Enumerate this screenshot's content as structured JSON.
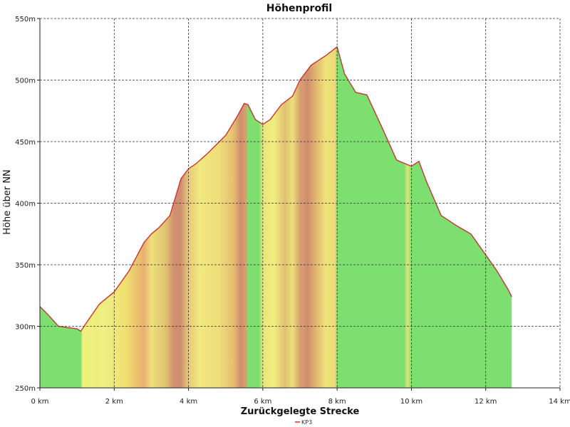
{
  "chart_data": {
    "type": "area",
    "title": "Höhenprofil",
    "xlabel": "Zurückgelegte Strecke",
    "ylabel": "Höhe über NN",
    "xlim": [
      0,
      14
    ],
    "ylim": [
      250,
      550
    ],
    "x_ticks": [
      0,
      2,
      4,
      6,
      8,
      10,
      12,
      14
    ],
    "x_tick_labels": [
      "0 km",
      "2 km",
      "4 km",
      "6 km",
      "8 km",
      "10 km",
      "12 km",
      "14 km"
    ],
    "y_ticks": [
      250,
      300,
      350,
      400,
      450,
      500,
      550
    ],
    "y_tick_labels": [
      "250m",
      "300m",
      "350m",
      "400m",
      "450m",
      "500m",
      "550m"
    ],
    "grid": true,
    "legend_position": "bottom-center",
    "series": [
      {
        "name": "KP3",
        "color": "#cc3333",
        "x": [
          0,
          0.2,
          0.5,
          1.0,
          1.1,
          1.3,
          1.6,
          2.0,
          2.4,
          2.8,
          3.0,
          3.2,
          3.5,
          3.8,
          4.0,
          4.2,
          4.5,
          5.0,
          5.3,
          5.5,
          5.6,
          5.8,
          6.0,
          6.2,
          6.5,
          6.8,
          7.0,
          7.3,
          7.7,
          8.0,
          8.2,
          8.5,
          8.8,
          9.2,
          9.6,
          10.0,
          10.2,
          10.4,
          10.8,
          11.2,
          11.6,
          12.0,
          12.3,
          12.6,
          12.7
        ],
        "y": [
          316,
          310,
          300,
          298,
          296,
          305,
          318,
          328,
          345,
          368,
          375,
          380,
          390,
          420,
          428,
          432,
          440,
          455,
          470,
          481,
          480,
          468,
          464,
          468,
          480,
          487,
          500,
          512,
          520,
          527,
          505,
          490,
          488,
          462,
          435,
          430,
          434,
          418,
          390,
          382,
          375,
          358,
          345,
          330,
          324
        ]
      }
    ],
    "gradient_stops": [
      {
        "x": 0.0,
        "color": "#7ddf70"
      },
      {
        "x": 1.1,
        "color": "#7ddf70"
      },
      {
        "x": 1.15,
        "color": "#f0f07c"
      },
      {
        "x": 1.8,
        "color": "#eded82"
      },
      {
        "x": 2.3,
        "color": "#f0e070"
      },
      {
        "x": 2.8,
        "color": "#e8b070"
      },
      {
        "x": 3.0,
        "color": "#eee07a"
      },
      {
        "x": 3.4,
        "color": "#e0c070"
      },
      {
        "x": 3.6,
        "color": "#d09070"
      },
      {
        "x": 3.8,
        "color": "#d09070"
      },
      {
        "x": 4.0,
        "color": "#e8c878"
      },
      {
        "x": 4.3,
        "color": "#f0e880"
      },
      {
        "x": 4.8,
        "color": "#eede7a"
      },
      {
        "x": 5.2,
        "color": "#e8c070"
      },
      {
        "x": 5.4,
        "color": "#cc8f6e"
      },
      {
        "x": 5.55,
        "color": "#d9a26f"
      },
      {
        "x": 5.6,
        "color": "#7ddf70"
      },
      {
        "x": 5.9,
        "color": "#7ddf70"
      },
      {
        "x": 6.0,
        "color": "#e8e678"
      },
      {
        "x": 6.3,
        "color": "#f0ee80"
      },
      {
        "x": 6.6,
        "color": "#e0c070"
      },
      {
        "x": 6.8,
        "color": "#eee07a"
      },
      {
        "x": 7.0,
        "color": "#d8a070"
      },
      {
        "x": 7.2,
        "color": "#cd8e6e"
      },
      {
        "x": 7.4,
        "color": "#e0b070"
      },
      {
        "x": 7.7,
        "color": "#ece478"
      },
      {
        "x": 7.95,
        "color": "#eed878"
      },
      {
        "x": 8.0,
        "color": "#7ddf70"
      },
      {
        "x": 9.8,
        "color": "#7ddf70"
      },
      {
        "x": 9.9,
        "color": "#e0e478"
      },
      {
        "x": 10.0,
        "color": "#7ddf70"
      },
      {
        "x": 12.7,
        "color": "#7ddf70"
      }
    ]
  }
}
